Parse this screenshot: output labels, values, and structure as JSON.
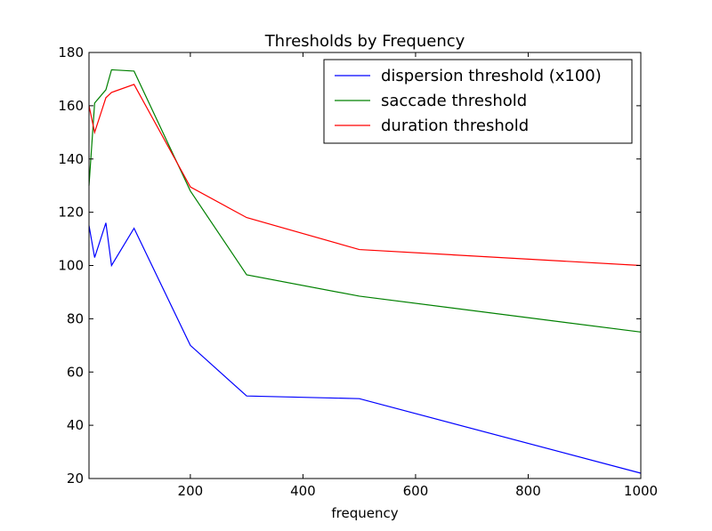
{
  "chart_data": {
    "type": "line",
    "title": "Thresholds by Frequency",
    "xlabel": "frequency",
    "ylabel": "",
    "xlim": [
      20,
      1000
    ],
    "ylim": [
      20,
      180
    ],
    "x_ticks": [
      200,
      400,
      600,
      800,
      1000
    ],
    "y_ticks": [
      20,
      40,
      60,
      80,
      100,
      120,
      140,
      160,
      180
    ],
    "grid": false,
    "legend_position": "top-right",
    "series": [
      {
        "name": "dispersion threshold (x100)",
        "color": "#0000ff",
        "x": [
          20,
          30,
          50,
          60,
          100,
          200,
          300,
          500,
          1000
        ],
        "y": [
          115,
          103,
          116,
          100,
          114,
          70,
          51,
          50,
          22
        ]
      },
      {
        "name": "saccade threshold",
        "color": "#008000",
        "x": [
          20,
          30,
          50,
          60,
          100,
          200,
          300,
          500,
          1000
        ],
        "y": [
          130,
          161,
          166,
          173.5,
          173,
          128,
          96.5,
          88.5,
          75
        ]
      },
      {
        "name": "duration threshold",
        "color": "#ff0000",
        "x": [
          20,
          30,
          50,
          60,
          100,
          200,
          300,
          500,
          1000
        ],
        "y": [
          160,
          150,
          163,
          165,
          168,
          129.5,
          118,
          106,
          100
        ]
      }
    ]
  }
}
